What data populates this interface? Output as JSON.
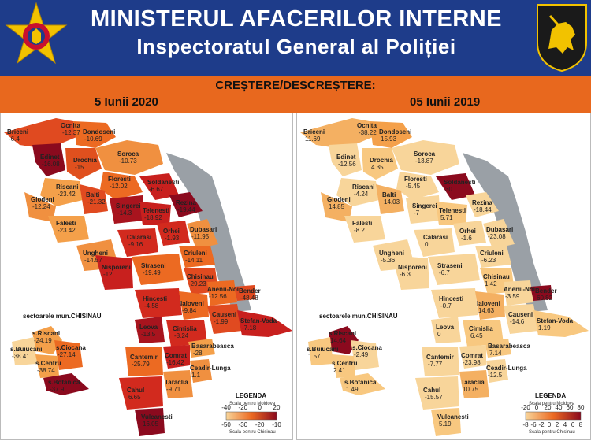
{
  "header": {
    "title_line1": "MINISTERUL AFACERILOR INTERNE",
    "title_line2": "Inspectoratul General al Poliției"
  },
  "band": {
    "subtitle": "CREȘTERE/DESCREȘTERE:",
    "date_left": "5 Iunii 2020",
    "date_right": "05 Iunii 2019"
  },
  "left_map": {
    "districts": [
      {
        "name": "Briceni",
        "value": "-6.4"
      },
      {
        "name": "Ocnita",
        "value": "-12.37"
      },
      {
        "name": "Dondoseni",
        "value": "-10.69"
      },
      {
        "name": "Edinet",
        "value": "-16.08"
      },
      {
        "name": "Drochia",
        "value": "-15"
      },
      {
        "name": "Soroca",
        "value": "-10.73"
      },
      {
        "name": "Riscani",
        "value": "-23.42"
      },
      {
        "name": "Floresti",
        "value": "-12.02"
      },
      {
        "name": "Glodeni",
        "value": "-12.24"
      },
      {
        "name": "Balti",
        "value": "-21.32"
      },
      {
        "name": "Soldanesti",
        "value": "-6.67"
      },
      {
        "name": "Singerei",
        "value": "-14.3"
      },
      {
        "name": "Rezina",
        "value": "-19.44"
      },
      {
        "name": "Falesti",
        "value": "-23.42"
      },
      {
        "name": "Telenesti",
        "value": "-18.92"
      },
      {
        "name": "Orhei",
        "value": "-1.93"
      },
      {
        "name": "Ungheni",
        "value": "-14.57"
      },
      {
        "name": "Calarasi",
        "value": "-9.16"
      },
      {
        "name": "Dubasari",
        "value": "-11.95"
      },
      {
        "name": "Criuleni",
        "value": "-14.11"
      },
      {
        "name": "Nisporeni",
        "value": "-12"
      },
      {
        "name": "Straseni",
        "value": "-19.49"
      },
      {
        "name": "Chisinau",
        "value": "-29.23"
      },
      {
        "name": "Anenii-Noi",
        "value": "-12.56"
      },
      {
        "name": "Bender",
        "value": "-48.48"
      },
      {
        "name": "Hincesti",
        "value": "-4.58"
      },
      {
        "name": "Ialoveni",
        "value": "-9.84"
      },
      {
        "name": "Causeni",
        "value": "-1.99"
      },
      {
        "name": "Stefan-Voda",
        "value": "-7.18"
      },
      {
        "name": "Leova",
        "value": "-13.5"
      },
      {
        "name": "Cimislia",
        "value": "-8.24"
      },
      {
        "name": "Basarabeasca",
        "value": "-28"
      },
      {
        "name": "Comrat",
        "value": "-16.42"
      },
      {
        "name": "Cantemir",
        "value": "-25.79"
      },
      {
        "name": "Ceadir-Lunga",
        "value": "1.1"
      },
      {
        "name": "Taraclia",
        "value": "-9.71"
      },
      {
        "name": "Cahul",
        "value": "6.65"
      },
      {
        "name": "Vulcanesti",
        "value": "16.05"
      }
    ],
    "sectors_title": "sectoarele mun.CHISINAU",
    "sectors": [
      {
        "name": "s.Riscani",
        "value": "-24.19"
      },
      {
        "name": "s.Buiucani",
        "value": "-38.41"
      },
      {
        "name": "s.Ciocana",
        "value": "-27.14"
      },
      {
        "name": "s.Centru",
        "value": "-38.74"
      },
      {
        "name": "s.Botanica",
        "value": "-37.9"
      }
    ],
    "legend": {
      "title": "LEGENDA",
      "caption_top": "Scala pentru Moldova",
      "caption_bottom": "Scala pentru Chisinau",
      "ticks_top": [
        "-40",
        "-20",
        "0",
        "20"
      ],
      "ticks_bottom": [
        "-50",
        "-30",
        "-20",
        "-10"
      ]
    }
  },
  "right_map": {
    "districts": [
      {
        "name": "Briceni",
        "value": "11.69"
      },
      {
        "name": "Ocnita",
        "value": "-38.22"
      },
      {
        "name": "Dondoseni",
        "value": "15.93"
      },
      {
        "name": "Edinet",
        "value": "-12.56"
      },
      {
        "name": "Drochia",
        "value": "4.35"
      },
      {
        "name": "Soroca",
        "value": "-13.87"
      },
      {
        "name": "Riscani",
        "value": "-4.24"
      },
      {
        "name": "Floresti",
        "value": "-5.45"
      },
      {
        "name": "Glodeni",
        "value": "14.85"
      },
      {
        "name": "Balti",
        "value": "14.03"
      },
      {
        "name": "Soldanesti",
        "value": "30"
      },
      {
        "name": "Singerei",
        "value": "-7"
      },
      {
        "name": "Rezina",
        "value": "-18.44"
      },
      {
        "name": "Falesti",
        "value": "-8.2"
      },
      {
        "name": "Telenesti",
        "value": "5.71"
      },
      {
        "name": "Orhei",
        "value": "-1.6"
      },
      {
        "name": "Ungheni",
        "value": "-5.36"
      },
      {
        "name": "Calarasi",
        "value": "0"
      },
      {
        "name": "Dubasari",
        "value": "-23.08"
      },
      {
        "name": "Criuleni",
        "value": "-6.23"
      },
      {
        "name": "Nisporeni",
        "value": "-6.3"
      },
      {
        "name": "Straseni",
        "value": "-6.7"
      },
      {
        "name": "Chisinau",
        "value": "1.42"
      },
      {
        "name": "Anenii-Noi",
        "value": "-3.59"
      },
      {
        "name": "Bender",
        "value": "60.82"
      },
      {
        "name": "Hincesti",
        "value": "-0.7"
      },
      {
        "name": "Ialoveni",
        "value": "14.63"
      },
      {
        "name": "Causeni",
        "value": "-14.6"
      },
      {
        "name": "Stefan-Voda",
        "value": "1.19"
      },
      {
        "name": "Leova",
        "value": "0"
      },
      {
        "name": "Cimislia",
        "value": "6.45"
      },
      {
        "name": "Basarabeasca",
        "value": "7.14"
      },
      {
        "name": "Comrat",
        "value": "-23.98"
      },
      {
        "name": "Cantemir",
        "value": "-7.77"
      },
      {
        "name": "Ceadir-Lunga",
        "value": "-12.5"
      },
      {
        "name": "Taraclia",
        "value": "10.75"
      },
      {
        "name": "Cahul",
        "value": "-15.57"
      },
      {
        "name": "Vulcanesti",
        "value": "5.19"
      }
    ],
    "sectors_title": "sectoarele mun.CHISINAU",
    "sectors": [
      {
        "name": "s.Riscani",
        "value": "14.64"
      },
      {
        "name": "s.Buiucani",
        "value": "1.57"
      },
      {
        "name": "s.Ciocana",
        "value": "-2.49"
      },
      {
        "name": "s.Centru",
        "value": "2.41"
      },
      {
        "name": "s.Botanica",
        "value": "1.49"
      }
    ],
    "legend": {
      "title": "LEGENDA",
      "caption_top": "Scala pentru Moldova",
      "caption_bottom": "Scala pentru Chisinau",
      "ticks_top": [
        "-20",
        "0",
        "20",
        "40",
        "60",
        "80"
      ],
      "ticks_bottom": [
        "-8",
        "-6",
        "-2",
        "0",
        "2",
        "4",
        "6",
        "8"
      ]
    }
  },
  "colors": {
    "header_bg": "#1e3c8a",
    "band_bg": "#e8681e",
    "dark_red": "#8b0a1e",
    "red": "#d22a1e",
    "orange": "#ec6a22",
    "light_orange": "#f4a04a",
    "pale": "#f8d59a",
    "transnistria": "#9aa0a6"
  }
}
